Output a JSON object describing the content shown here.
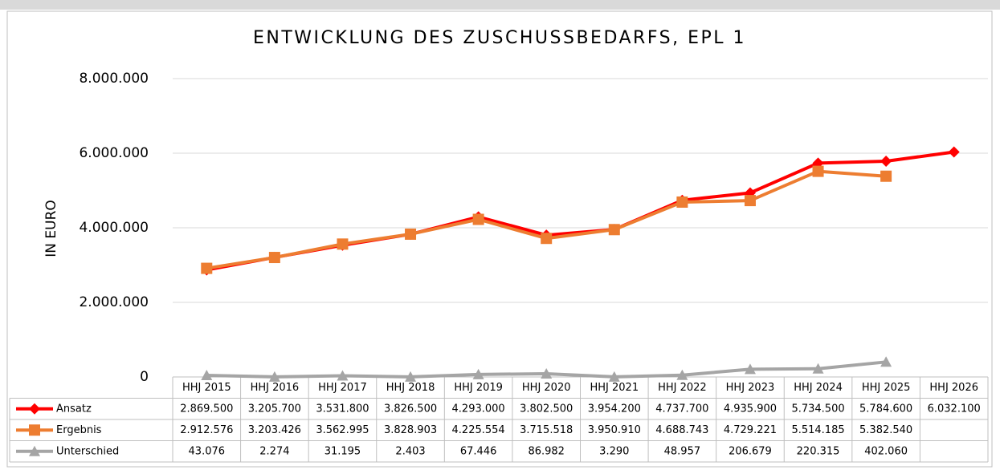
{
  "chart_data": {
    "type": "line",
    "title": "ENTWICKLUNG DES ZUSCHUSSBEDARFS, EPL 1",
    "y_label": "IN EURO",
    "categories": [
      "HHJ 2015",
      "HHJ 2016",
      "HHJ 2017",
      "HHJ 2018",
      "HHJ 2019",
      "HHJ 2020",
      "HHJ 2021",
      "HHJ 2022",
      "HHJ 2023",
      "HHJ 2024",
      "HHJ 2025",
      "HHJ 2026"
    ],
    "series": [
      {
        "name": "Ansatz",
        "color": "#ff0000",
        "marker": "diamond",
        "values": [
          2869500,
          3205700,
          3531800,
          3826500,
          4293000,
          3802500,
          3954200,
          4737700,
          4935900,
          5734500,
          5784600,
          6032100
        ],
        "value_labels": [
          "2.869.500",
          "3.205.700",
          "3.531.800",
          "3.826.500",
          "4.293.000",
          "3.802.500",
          "3.954.200",
          "4.737.700",
          "4.935.900",
          "5.734.500",
          "5.784.600",
          "6.032.100"
        ]
      },
      {
        "name": "Ergebnis",
        "color": "#ed7d31",
        "marker": "square",
        "values": [
          2912576,
          3203426,
          3562995,
          3828903,
          4225554,
          3715518,
          3950910,
          4688743,
          4729221,
          5514185,
          5382540,
          null
        ],
        "value_labels": [
          "2.912.576",
          "3.203.426",
          "3.562.995",
          "3.828.903",
          "4.225.554",
          "3.715.518",
          "3.950.910",
          "4.688.743",
          "4.729.221",
          "5.514.185",
          "5.382.540",
          null
        ]
      },
      {
        "name": "Unterschied",
        "color": "#a5a5a5",
        "marker": "triangle",
        "values": [
          43076,
          2274,
          31195,
          2403,
          67446,
          86982,
          3290,
          48957,
          206679,
          220315,
          402060,
          null
        ],
        "value_labels": [
          "43.076",
          "2.274",
          "31.195",
          "2.403",
          "67.446",
          "86.982",
          "3.290",
          "48.957",
          "206.679",
          "220.315",
          "402.060",
          null
        ]
      }
    ],
    "ylim": [
      0,
      8000000
    ],
    "yticks": [
      0,
      {
        "value": 2000000,
        "label": "2.000.000"
      },
      {
        "value": 4000000,
        "label": "4.000.000"
      },
      {
        "value": 6000000,
        "label": "6.000.000"
      },
      {
        "value": 8000000,
        "label": "8.000.000"
      }
    ],
    "grid": true
  }
}
